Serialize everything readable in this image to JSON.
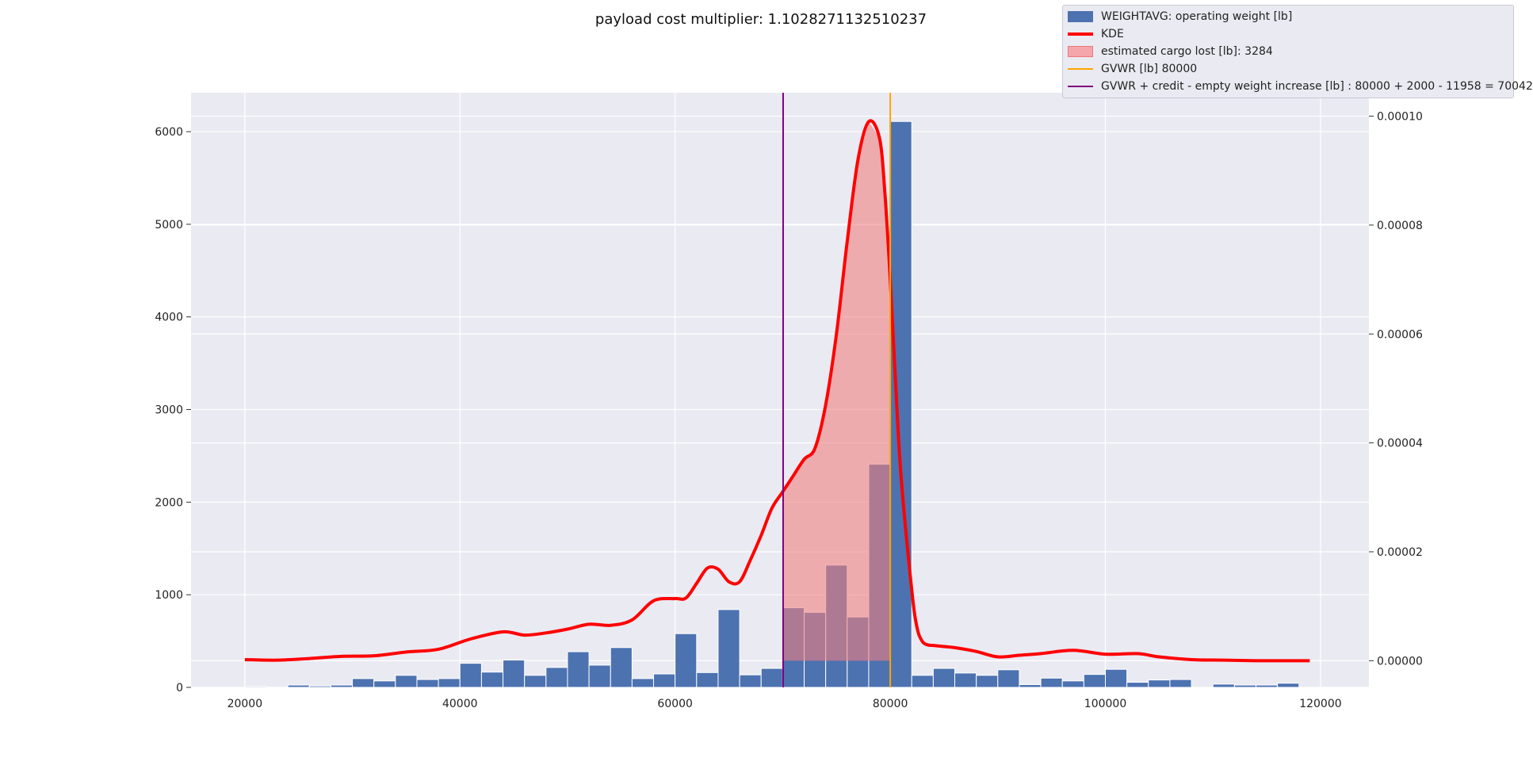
{
  "chart_data": {
    "type": "bar",
    "title": "payload cost multiplier: 1.1028271132510237",
    "xlabel": "",
    "ylabel": "",
    "xlim": [
      15000,
      124500
    ],
    "ylim": [
      0,
      6420
    ],
    "y2lim": [
      -4.9e-06,
      0.0001043
    ],
    "grid": true,
    "legend_position": "top-right",
    "x_ticks": [
      20000,
      40000,
      60000,
      80000,
      100000,
      120000
    ],
    "y_ticks": [
      0,
      1000,
      2000,
      3000,
      4000,
      5000,
      6000
    ],
    "y2_ticks": [
      0.0,
      2e-05,
      4e-05,
      6e-05,
      8e-05,
      0.0001
    ],
    "y2_tick_labels": [
      "0.00000",
      "0.00002",
      "0.00004",
      "0.00006",
      "0.00008",
      "0.00010"
    ],
    "bin_start": 20000,
    "bin_width": 2000,
    "histogram_counts": [
      10,
      0,
      25,
      15,
      25,
      95,
      70,
      130,
      85,
      95,
      260,
      165,
      295,
      130,
      215,
      385,
      240,
      430,
      95,
      145,
      580,
      160,
      840,
      135,
      205,
      860,
      810,
      1320,
      760,
      2410,
      6110,
      130,
      205,
      155,
      130,
      190,
      30,
      100,
      70,
      140,
      195,
      55,
      80,
      85,
      0,
      35,
      25,
      25,
      45,
      0
    ],
    "kde": {
      "x": [
        20000,
        23000,
        26000,
        29000,
        32000,
        35000,
        38000,
        41000,
        44000,
        46000,
        48000,
        50000,
        52000,
        54000,
        56000,
        58000,
        60000,
        61000,
        62000,
        63000,
        64000,
        65000,
        66000,
        67000,
        68000,
        69000,
        70000,
        71000,
        72000,
        73000,
        74000,
        75000,
        76000,
        77000,
        78000,
        79000,
        79500,
        80000,
        80500,
        81000,
        82000,
        82500,
        83000,
        83500,
        84000,
        85000,
        86000,
        88000,
        90000,
        92000,
        94000,
        97000,
        100000,
        103000,
        105000,
        108000,
        111000,
        114000,
        117000,
        119000
      ],
      "y": [
        2e-07,
        1e-07,
        4e-07,
        8e-07,
        9e-07,
        1.6e-06,
        2.1e-06,
        4e-06,
        5.3e-06,
        4.7e-06,
        5.1e-06,
        5.8e-06,
        6.7e-06,
        6.5e-06,
        7.5e-06,
        1.1e-05,
        1.14e-05,
        1.15e-05,
        1.42e-05,
        1.7e-05,
        1.68e-05,
        1.45e-05,
        1.45e-05,
        1.85e-05,
        2.3e-05,
        2.8e-05,
        3.1e-05,
        3.4e-05,
        3.7e-05,
        3.9e-05,
        4.7e-05,
        6e-05,
        7.7e-05,
        9.2e-05,
        9.9e-05,
        9.6e-05,
        8.6e-05,
        7e-05,
        5.1e-05,
        3.4e-05,
        1.3e-05,
        6e-06,
        3.5e-06,
        2.9e-06,
        2.8e-06,
        2.6e-06,
        2.4e-06,
        1.7e-06,
        7e-07,
        1e-06,
        1.3e-06,
        1.9e-06,
        1.2e-06,
        1.3e-06,
        7e-07,
        2e-07,
        1e-07,
        0.0,
        0.0,
        0.0
      ]
    },
    "shaded_region": [
      70042,
      80000
    ],
    "vlines": [
      {
        "x": 80000,
        "color": "#ffa500"
      },
      {
        "x": 70042,
        "color": "#800080"
      }
    ],
    "legend": [
      {
        "label": "WEIGHTAVG: operating weight [lb]",
        "type": "patch",
        "color": "#4c72b0"
      },
      {
        "label": "KDE",
        "type": "line",
        "color": "#ff0000"
      },
      {
        "label": "estimated cargo lost [lb]: 3284",
        "type": "patch",
        "color": "#f4a6aa"
      },
      {
        "label": "GVWR [lb] 80000",
        "type": "line",
        "color": "#ffa500"
      },
      {
        "label": "GVWR + credit - empty weight increase [lb] : 80000 + 2000  - 11958 = 70042",
        "type": "line",
        "color": "#800080"
      }
    ],
    "colors": {
      "hist": "#4c72b0",
      "kde": "#ff0000",
      "shade": "#f08080",
      "gvwr": "#ffa500",
      "gvwr_credit": "#800080",
      "plot_bg": "#eaeaf2",
      "grid": "#ffffff"
    }
  }
}
